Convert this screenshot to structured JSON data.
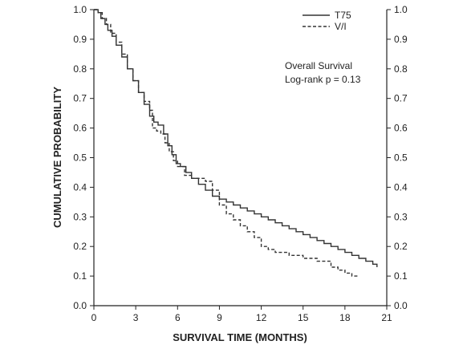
{
  "chart_data": {
    "type": "line",
    "title": "",
    "xlabel": "SURVIVAL TIME (MONTHS)",
    "ylabel": "CUMULATIVE PROBABILITY",
    "xlim": [
      0,
      21
    ],
    "ylim": [
      0,
      1.0
    ],
    "x_ticks": [
      "0",
      "3",
      "6",
      "9",
      "12",
      "15",
      "18",
      "21"
    ],
    "y_ticks": [
      "0.0",
      "0.1",
      "0.2",
      "0.3",
      "0.4",
      "0.5",
      "0.6",
      "0.7",
      "0.8",
      "0.9",
      "1.0"
    ],
    "y_ticks_right": [
      "0.0",
      "0.1",
      "0.2",
      "0.3",
      "0.4",
      "0.5",
      "0.6",
      "0.7",
      "0.8",
      "0.9",
      "1.0"
    ],
    "grid": false,
    "legend_position": "top-right",
    "annotations": [
      "Overall Survival",
      "Log-rank p = 0.13"
    ],
    "series": [
      {
        "name": "T75",
        "style": "solid",
        "color": "#333333",
        "x": [
          0,
          0.3,
          0.5,
          0.8,
          1.0,
          1.3,
          1.6,
          2.0,
          2.4,
          2.8,
          3.2,
          3.6,
          4.0,
          4.3,
          4.6,
          5.0,
          5.3,
          5.6,
          5.9,
          6.2,
          6.6,
          7.0,
          7.5,
          8.0,
          8.5,
          9.0,
          9.5,
          10.0,
          10.5,
          11.0,
          11.5,
          12.0,
          12.5,
          13.0,
          13.5,
          14.0,
          14.5,
          15.0,
          15.5,
          16.0,
          16.5,
          17.0,
          17.5,
          18.0,
          18.5,
          19.0,
          19.5,
          20.0,
          20.3
        ],
        "values": [
          1.0,
          0.99,
          0.97,
          0.95,
          0.93,
          0.91,
          0.88,
          0.84,
          0.8,
          0.76,
          0.72,
          0.68,
          0.64,
          0.62,
          0.61,
          0.58,
          0.54,
          0.51,
          0.48,
          0.47,
          0.45,
          0.43,
          0.41,
          0.39,
          0.37,
          0.36,
          0.35,
          0.34,
          0.33,
          0.32,
          0.31,
          0.3,
          0.29,
          0.28,
          0.27,
          0.26,
          0.25,
          0.24,
          0.23,
          0.22,
          0.21,
          0.2,
          0.19,
          0.18,
          0.17,
          0.16,
          0.15,
          0.14,
          0.13
        ]
      },
      {
        "name": "V/I",
        "style": "dashed",
        "color": "#333333",
        "x": [
          0,
          0.3,
          0.6,
          0.9,
          1.2,
          1.6,
          2.0,
          2.4,
          2.8,
          3.2,
          3.6,
          4.0,
          4.2,
          4.5,
          4.8,
          5.1,
          5.4,
          5.7,
          6.0,
          6.5,
          7.0,
          7.5,
          8.0,
          8.5,
          9.0,
          9.5,
          10.0,
          10.5,
          11.0,
          11.5,
          12.0,
          12.5,
          13.0,
          14.0,
          15.0,
          16.0,
          17.0,
          17.5,
          18.0,
          18.5,
          19.0
        ],
        "values": [
          1.0,
          0.99,
          0.97,
          0.95,
          0.92,
          0.89,
          0.85,
          0.8,
          0.76,
          0.72,
          0.69,
          0.66,
          0.6,
          0.59,
          0.58,
          0.55,
          0.52,
          0.49,
          0.47,
          0.44,
          0.43,
          0.43,
          0.42,
          0.39,
          0.34,
          0.31,
          0.29,
          0.27,
          0.25,
          0.23,
          0.2,
          0.19,
          0.18,
          0.17,
          0.16,
          0.15,
          0.13,
          0.12,
          0.11,
          0.1,
          0.1
        ]
      }
    ]
  }
}
